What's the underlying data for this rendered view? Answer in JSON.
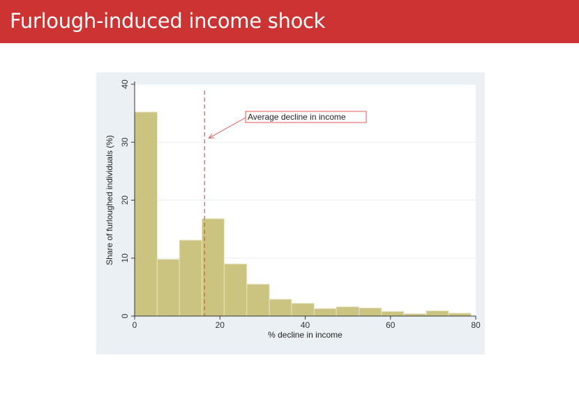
{
  "slide": {
    "title": "Furlough-induced income shock"
  },
  "chart_data": {
    "type": "bar",
    "title": "",
    "xlabel": "% decline in income",
    "ylabel": "Share of furloughed individuals (%)",
    "xlim": [
      0,
      80
    ],
    "ylim": [
      0,
      40
    ],
    "x_ticks": [
      0,
      20,
      40,
      60,
      80
    ],
    "y_ticks": [
      0,
      10,
      20,
      30,
      40
    ],
    "grid": "horizontal",
    "bins": [
      {
        "start": 0,
        "end": 5.3,
        "value": 35.2
      },
      {
        "start": 5.3,
        "end": 10.5,
        "value": 9.8
      },
      {
        "start": 10.5,
        "end": 15.8,
        "value": 13.1
      },
      {
        "start": 15.8,
        "end": 21.0,
        "value": 16.8
      },
      {
        "start": 21.0,
        "end": 26.3,
        "value": 9.0
      },
      {
        "start": 26.3,
        "end": 31.6,
        "value": 5.5
      },
      {
        "start": 31.6,
        "end": 36.8,
        "value": 2.9
      },
      {
        "start": 36.8,
        "end": 42.1,
        "value": 2.2
      },
      {
        "start": 42.1,
        "end": 47.3,
        "value": 1.3
      },
      {
        "start": 47.3,
        "end": 52.6,
        "value": 1.6
      },
      {
        "start": 52.6,
        "end": 57.9,
        "value": 1.4
      },
      {
        "start": 57.9,
        "end": 63.1,
        "value": 0.8
      },
      {
        "start": 63.1,
        "end": 68.4,
        "value": 0.4
      },
      {
        "start": 68.4,
        "end": 73.6,
        "value": 0.9
      },
      {
        "start": 73.6,
        "end": 78.9,
        "value": 0.5
      }
    ],
    "average_line": {
      "x": 16.4
    },
    "annotation": {
      "text": "Average decline in income",
      "points_to": [
        17.4,
        30.7
      ]
    },
    "colors": {
      "bar_fill": "#cbc380",
      "bar_stroke": "#e8e4c8",
      "average_line": "#e05555",
      "annotation": "#e05555",
      "plot_bg": "#ffffff",
      "panel_bg": "#eaf0f3",
      "axis": "#333333",
      "grid": "#e6eef2"
    }
  }
}
